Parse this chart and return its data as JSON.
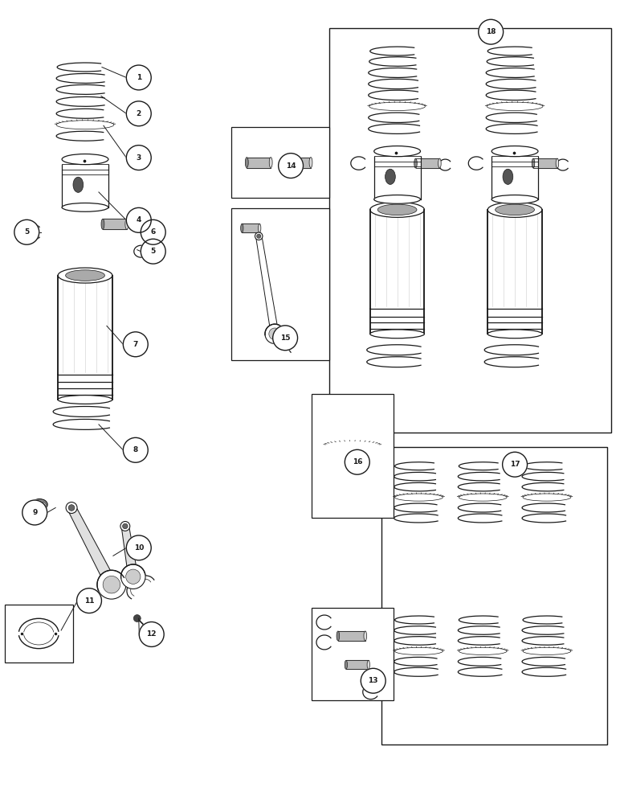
{
  "bg_color": "#ffffff",
  "line_color": "#1a1a1a",
  "fig_w": 7.72,
  "fig_h": 10.0,
  "dpi": 100,
  "xlim": [
    0,
    7.72
  ],
  "ylim": [
    0,
    10.0
  ],
  "part_labels": [
    [
      1.72,
      9.05,
      "1"
    ],
    [
      1.72,
      8.6,
      "2"
    ],
    [
      1.72,
      8.05,
      "3"
    ],
    [
      1.72,
      7.27,
      "4"
    ],
    [
      0.32,
      7.12,
      "5"
    ],
    [
      1.9,
      6.88,
      "5"
    ],
    [
      1.9,
      7.12,
      "6"
    ],
    [
      1.68,
      5.72,
      "7"
    ],
    [
      1.68,
      4.4,
      "8"
    ],
    [
      0.42,
      3.62,
      "9"
    ],
    [
      1.72,
      3.18,
      "10"
    ],
    [
      1.1,
      2.52,
      "11"
    ],
    [
      1.88,
      2.1,
      "12"
    ],
    [
      4.65,
      1.52,
      "13"
    ],
    [
      3.62,
      7.95,
      "14"
    ],
    [
      3.55,
      5.8,
      "15"
    ],
    [
      4.45,
      4.25,
      "16"
    ],
    [
      6.42,
      4.22,
      "17"
    ],
    [
      6.12,
      9.62,
      "18"
    ]
  ]
}
